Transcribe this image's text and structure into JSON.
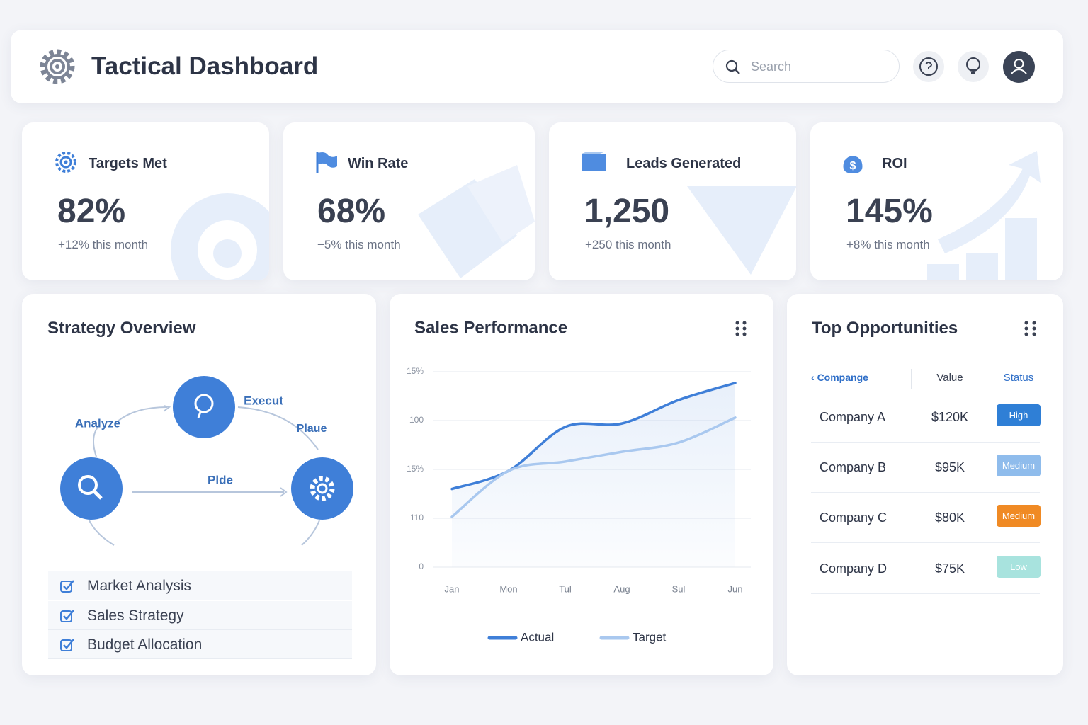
{
  "header": {
    "title": "Tactical Dashboard",
    "search_placeholder": "Search"
  },
  "kpis": [
    {
      "title": "Targets Met",
      "value": "82%",
      "change": "+12% this month"
    },
    {
      "title": "Win Rate",
      "value": "68%",
      "change": "−5% this month"
    },
    {
      "title": "Leads Generated",
      "value": "1,250",
      "change": "+250 this month"
    },
    {
      "title": "ROI",
      "value": "145%",
      "change": "+8% this month"
    }
  ],
  "strategy": {
    "title": "Strategy Overview",
    "nodes": [
      "Analyze",
      "Execut",
      "Plaue",
      "Plde"
    ],
    "items": [
      "Market Analysis",
      "Sales Strategy",
      "Budget Allocation"
    ]
  },
  "chart_data": {
    "type": "line",
    "title": "Sales Performance",
    "categories": [
      "Jan",
      "Mon",
      "Tul",
      "Aug",
      "Sul",
      "Jun"
    ],
    "series": [
      {
        "name": "Actual",
        "color": "#3f7fd8",
        "values": [
          1.6,
          1.97,
          2.87,
          2.94,
          3.42,
          3.77
        ]
      },
      {
        "name": "Target",
        "color": "#a9c8ef",
        "values": [
          1.03,
          1.97,
          2.16,
          2.36,
          2.55,
          3.06
        ]
      }
    ],
    "ylim": [
      0,
      4
    ],
    "yticks": [
      0,
      {
        "value": 1,
        "label": "110"
      },
      {
        "value": 2,
        "label": "15%"
      },
      {
        "value": 3,
        "label": "100"
      },
      {
        "value": 4,
        "label": "15%"
      }
    ],
    "grid": true,
    "legend": "bottom"
  },
  "opportunities": {
    "title": "Top Opportunities",
    "columns": [
      "Compange",
      "Value",
      "Status"
    ],
    "rows": [
      [
        "Company A",
        "$120K",
        "High"
      ],
      [
        "Company B",
        "$95K",
        "Medium"
      ],
      [
        "Company C",
        "$80K",
        "Medium"
      ],
      [
        "Company D",
        "$75K",
        "Low"
      ]
    ]
  }
}
